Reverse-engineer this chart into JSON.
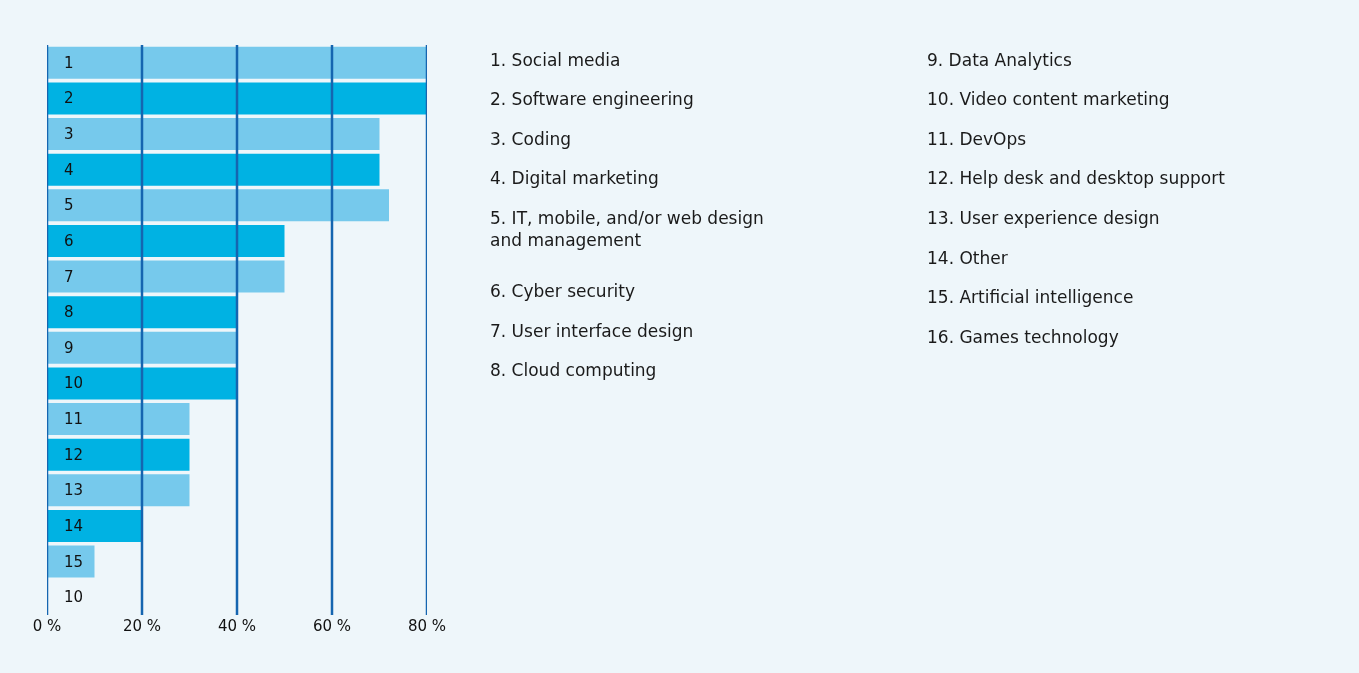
{
  "chart_data": {
    "type": "bar",
    "orientation": "horizontal",
    "categories": [
      "1",
      "2",
      "3",
      "4",
      "5",
      "6",
      "7",
      "8",
      "9",
      "10",
      "11",
      "12",
      "13",
      "14",
      "15",
      "10"
    ],
    "values": [
      80,
      80,
      70,
      70,
      72,
      50,
      50,
      40,
      40,
      40,
      30,
      30,
      30,
      20,
      10,
      0
    ],
    "colors": [
      "#76c9ec",
      "#00b2e3",
      "#76c9ec",
      "#00b2e3",
      "#76c9ec",
      "#00b2e3",
      "#76c9ec",
      "#00b2e3",
      "#76c9ec",
      "#00b2e3",
      "#76c9ec",
      "#00b2e3",
      "#76c9ec",
      "#00b2e3",
      "#76c9ec",
      "#00b2e3"
    ],
    "xlim": [
      0,
      80
    ],
    "xticks": [
      {
        "value": 0,
        "label": "0 %"
      },
      {
        "value": 20,
        "label": "20 %"
      },
      {
        "value": 40,
        "label": "40 %"
      },
      {
        "value": 60,
        "label": "60 %"
      },
      {
        "value": 80,
        "label": "80 %"
      }
    ],
    "grid": "x",
    "annotations": [
      "1. Social media",
      "2. Software engineering",
      "3. Coding",
      "4. Digital marketing",
      "5. IT, mobile, and/or web design and management",
      "6. Cyber security",
      "7. User interface design",
      "8. Cloud computing",
      "9. Data Analytics",
      "10. Video content marketing",
      "11. DevOps",
      "12. Help desk and desktop support",
      "13. User experience design",
      "14. Other",
      "15. Artificial intelligence",
      "16. Games technology"
    ]
  }
}
